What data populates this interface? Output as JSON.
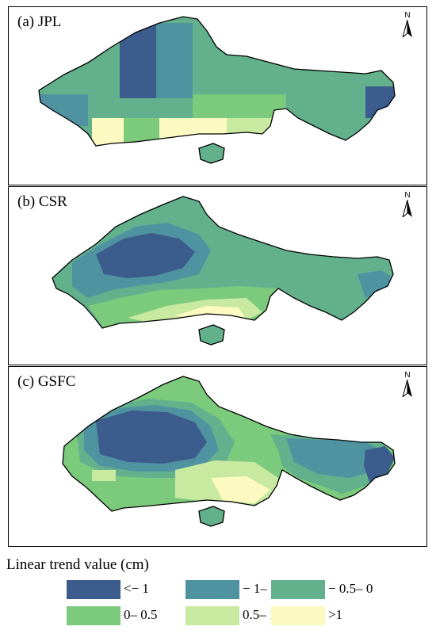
{
  "panels": [
    {
      "id": "a",
      "label": "(a) JPL"
    },
    {
      "id": "b",
      "label": "(b) CSR"
    },
    {
      "id": "c",
      "label": "(c) GSFC"
    }
  ],
  "north_arrow": {
    "letter": "N",
    "icon": "north-arrow-icon"
  },
  "legend": {
    "title": "Linear trend value (cm)",
    "classes": [
      {
        "label": "<− 1",
        "color": "#3b5c8c"
      },
      {
        "label": "− 1– − 0.5",
        "color": "#4f93a1"
      },
      {
        "label": "− 0.5– 0",
        "color": "#62b08c"
      },
      {
        "label": "0– 0.5",
        "color": "#7cca7c"
      },
      {
        "label": "0.5– 1",
        "color": "#c8e9a0"
      },
      {
        "label": ">1",
        "color": "#fcfac0"
      }
    ]
  }
}
